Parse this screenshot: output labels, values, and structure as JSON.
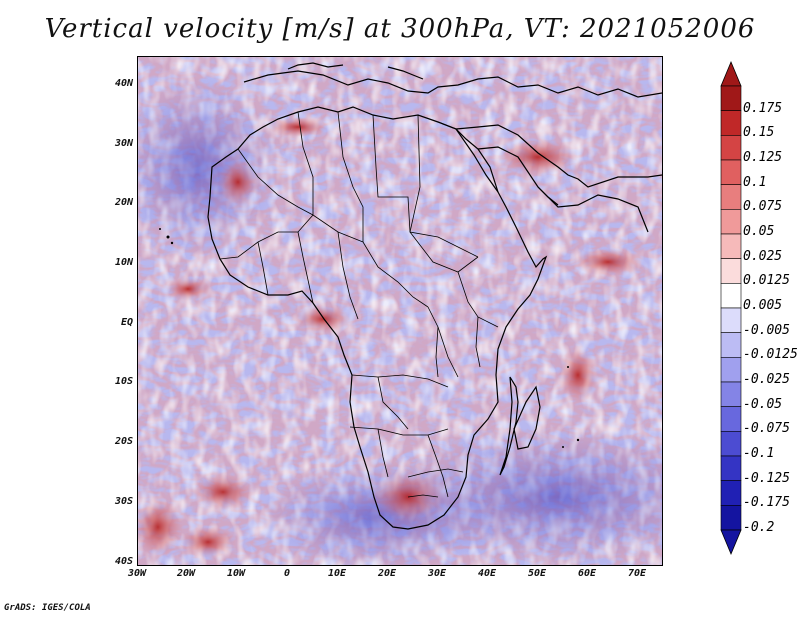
{
  "title": "Vertical velocity [m/s] at 300hPa, VT: 2021052006",
  "footer": "GrADS: IGES/COLA",
  "map": {
    "lat_ticks": [
      "40N",
      "30N",
      "20N",
      "10N",
      "EQ",
      "10S",
      "20S",
      "30S",
      "40S"
    ],
    "lon_ticks": [
      "30W",
      "20W",
      "10W",
      "0",
      "10E",
      "20E",
      "30E",
      "40E",
      "50E",
      "60E",
      "70E"
    ]
  },
  "colorbar": {
    "labels": [
      "0.175",
      "0.15",
      "0.125",
      "0.1",
      "0.075",
      "0.05",
      "0.025",
      "0.0125",
      "0.005",
      "-0.005",
      "-0.0125",
      "-0.025",
      "-0.05",
      "-0.075",
      "-0.1",
      "-0.125",
      "-0.175",
      "-0.2"
    ],
    "colors": [
      "#a01818",
      "#c02828",
      "#d44444",
      "#e06060",
      "#e87e7e",
      "#f09a9a",
      "#f6baba",
      "#fbdcdc",
      "#ffffff",
      "#dcdcfb",
      "#bcbcf4",
      "#a0a0ee",
      "#8484e6",
      "#6868de",
      "#4c4cd2",
      "#3434c4",
      "#2020b4",
      "#1414a0"
    ]
  }
}
